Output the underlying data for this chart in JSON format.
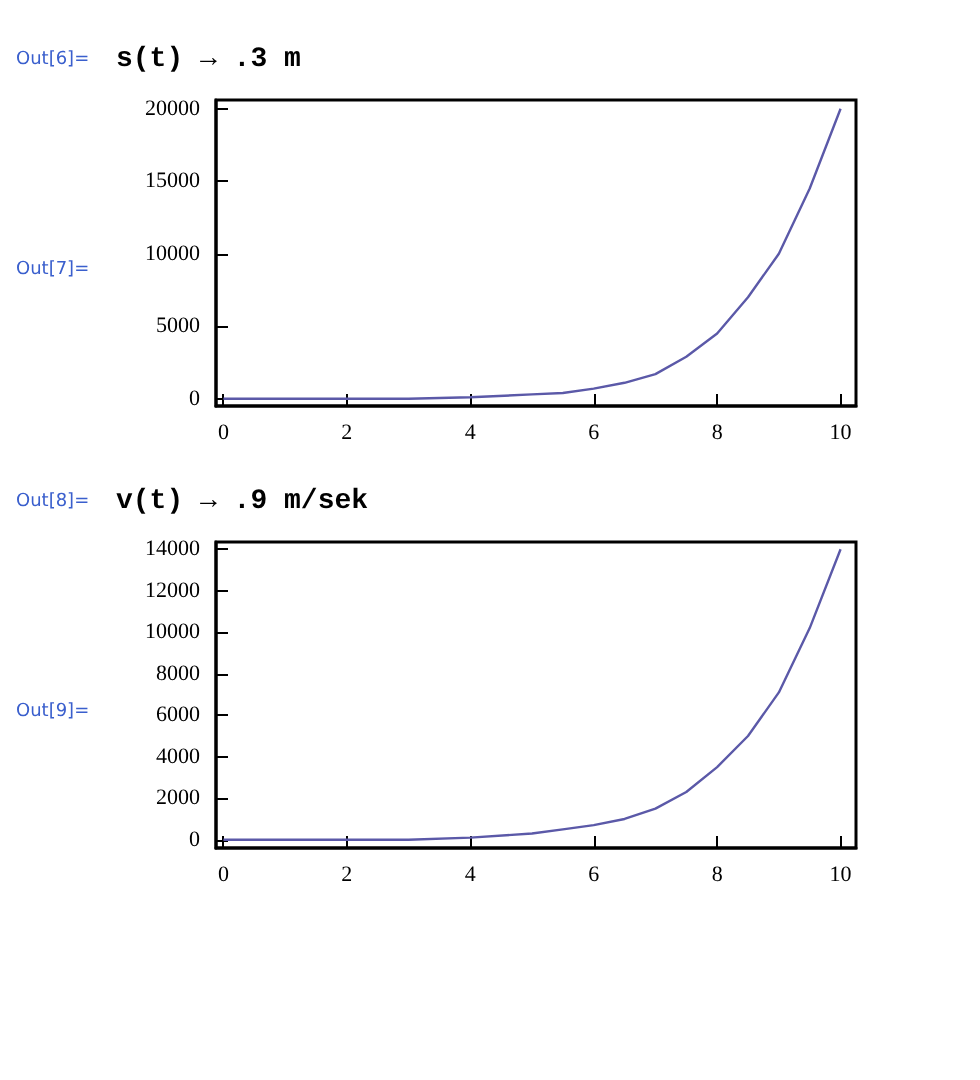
{
  "chart_data": [
    {
      "type": "line",
      "title": "s(t) → .3 m",
      "annotations": [
        "Out[6]=",
        "Out[7]="
      ],
      "color": "#5b59a8",
      "x": [
        0,
        1,
        2,
        3,
        4,
        5,
        5.5,
        6,
        6.5,
        7,
        7.5,
        8,
        8.5,
        9,
        9.5,
        10
      ],
      "values": [
        0,
        0,
        0,
        0,
        100,
        300,
        400,
        700,
        1100,
        1700,
        2900,
        4500,
        7000,
        10000,
        14500,
        20000
      ],
      "xlim": [
        -0.12,
        10.25
      ],
      "xticks": [
        0,
        2,
        4,
        6,
        8,
        10
      ],
      "ylim": [
        -500,
        20600
      ],
      "yticks": [
        0,
        5000,
        10000,
        15000,
        20000
      ],
      "grid": false
    },
    {
      "type": "line",
      "title": "v(t) → .9 m/sek",
      "annotations": [
        "Out[8]=",
        "Out[9]="
      ],
      "color": "#5b59a8",
      "x": [
        0,
        1,
        2,
        3,
        4,
        5,
        5.5,
        6,
        6.5,
        7,
        7.5,
        8,
        8.5,
        9,
        9.5,
        10
      ],
      "values": [
        0,
        0,
        0,
        0,
        100,
        300,
        500,
        700,
        1000,
        1500,
        2300,
        3500,
        5000,
        7100,
        10200,
        14000
      ],
      "xlim": [
        -0.12,
        10.25
      ],
      "xticks": [
        0,
        2,
        4,
        6,
        8,
        10
      ],
      "ylim": [
        -400,
        14350
      ],
      "yticks": [
        0,
        2000,
        4000,
        6000,
        8000,
        10000,
        12000,
        14000
      ],
      "grid": false
    }
  ]
}
